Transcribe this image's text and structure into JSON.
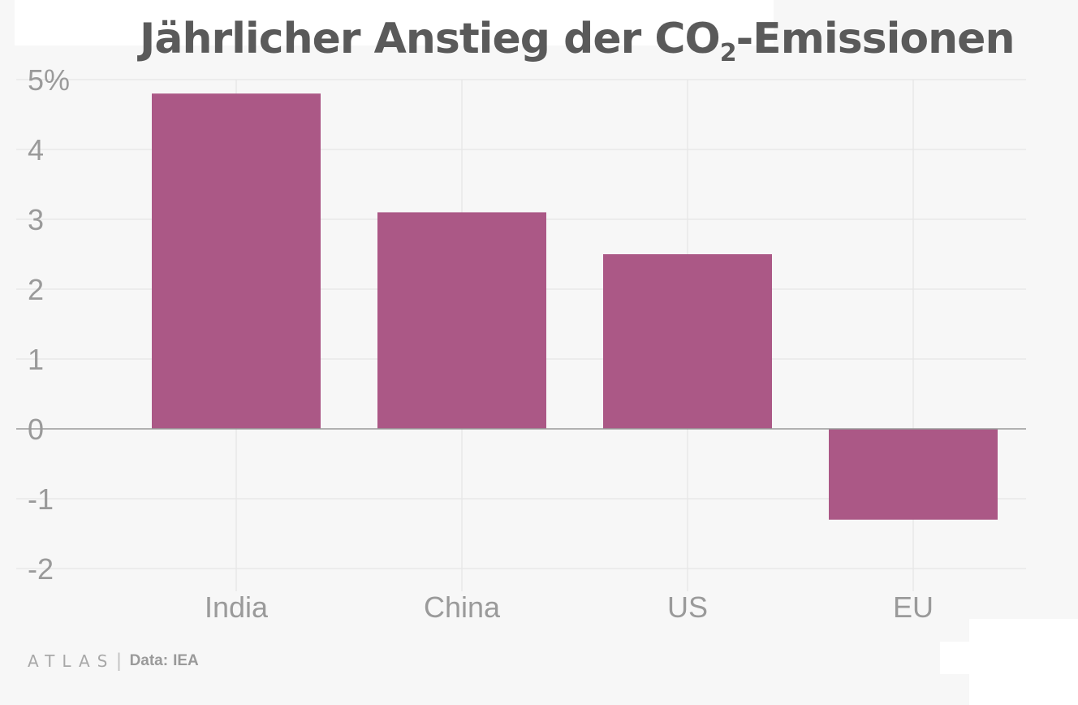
{
  "title": {
    "prefix": "Jährlicher Anstieg der CO",
    "subscript": "2",
    "suffix": "-Emissionen"
  },
  "footer": {
    "brand": "ATLAS",
    "source_label": "Data:",
    "source": "IEA"
  },
  "colors": {
    "bar": "#ab5886",
    "background": "#f7f7f7",
    "grid": "#e6e6e6",
    "zero_line": "#9a9a9a",
    "tick_text": "#9a9a9a",
    "title_text": "#5a5a5a"
  },
  "chart_data": {
    "type": "bar",
    "categories": [
      "India",
      "China",
      "US",
      "EU"
    ],
    "values": [
      4.8,
      3.1,
      2.5,
      -1.3
    ],
    "ylim": [
      -2,
      5
    ],
    "yticks": [
      5,
      4,
      3,
      2,
      1,
      0,
      -1,
      -2
    ],
    "ytick_labels": [
      "5%",
      "4",
      "3",
      "2",
      "1",
      "0",
      "-1",
      "-2"
    ],
    "grid": true
  }
}
